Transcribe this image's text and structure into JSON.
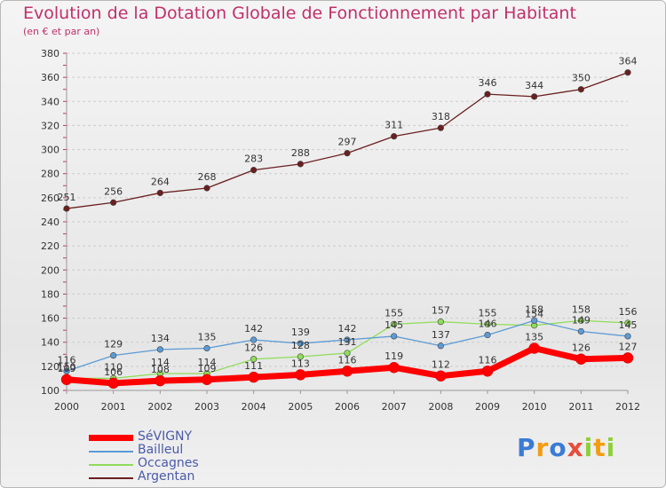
{
  "title": "Evolution de la Dotation Globale de Fonctionnement par Habitant",
  "subtitle": "(en € et par an)",
  "logo": "Proxiti",
  "colors": {
    "title": "#c0306a",
    "grid": "#cccccc",
    "axis": "#999999",
    "legend_text": "#4a5aa8"
  },
  "chart_data": {
    "type": "line",
    "title": "Evolution de la Dotation Globale de Fonctionnement par Habitant",
    "subtitle": "(en € et par an)",
    "x": [
      "2000",
      "2001",
      "2002",
      "2003",
      "2004",
      "2005",
      "2006",
      "2007",
      "2008",
      "2009",
      "2010",
      "2011",
      "2012"
    ],
    "ylim": [
      100,
      380
    ],
    "yticks": [
      100,
      120,
      140,
      160,
      180,
      200,
      220,
      240,
      260,
      280,
      300,
      320,
      340,
      360,
      380
    ],
    "grid": "horizontal dashed",
    "legend": "bottom-left",
    "series": [
      {
        "name": "SéVIGNY",
        "color": "#ff0000",
        "values": [
          109,
          106,
          108,
          109,
          111,
          113,
          116,
          119,
          112,
          116,
          135,
          126,
          127
        ],
        "labels": [
          "109",
          "106",
          "108",
          "109",
          "111",
          "113",
          "116",
          "119",
          "112",
          "116",
          "135",
          "126",
          "127"
        ]
      },
      {
        "name": "Bailleul",
        "color": "#5b9bd5",
        "values": [
          116,
          129,
          134,
          135,
          142,
          139,
          142,
          145,
          137,
          146,
          158,
          149,
          145
        ],
        "labels": [
          "116",
          "129",
          "134",
          "135",
          "142",
          "139",
          "142",
          "145",
          "137",
          "146",
          "158",
          "149",
          "145"
        ]
      },
      {
        "name": "Occagnes",
        "color": "#8fdc5a",
        "values": [
          110,
          110,
          114,
          114,
          126,
          128,
          131,
          155,
          157,
          155,
          154,
          158,
          156
        ],
        "labels": [
          "110",
          "110",
          "114",
          "114",
          "126",
          "128",
          "131",
          "155",
          "157",
          "155",
          "154",
          "158",
          "156"
        ]
      },
      {
        "name": "Argentan",
        "color": "#6b1f1f",
        "values": [
          251,
          256,
          264,
          268,
          283,
          288,
          297,
          311,
          318,
          346,
          344,
          350,
          364
        ],
        "labels": [
          "251",
          "256",
          "264",
          "268",
          "283",
          "288",
          "297",
          "311",
          "318",
          "346",
          "344",
          "350",
          "364"
        ]
      }
    ]
  }
}
